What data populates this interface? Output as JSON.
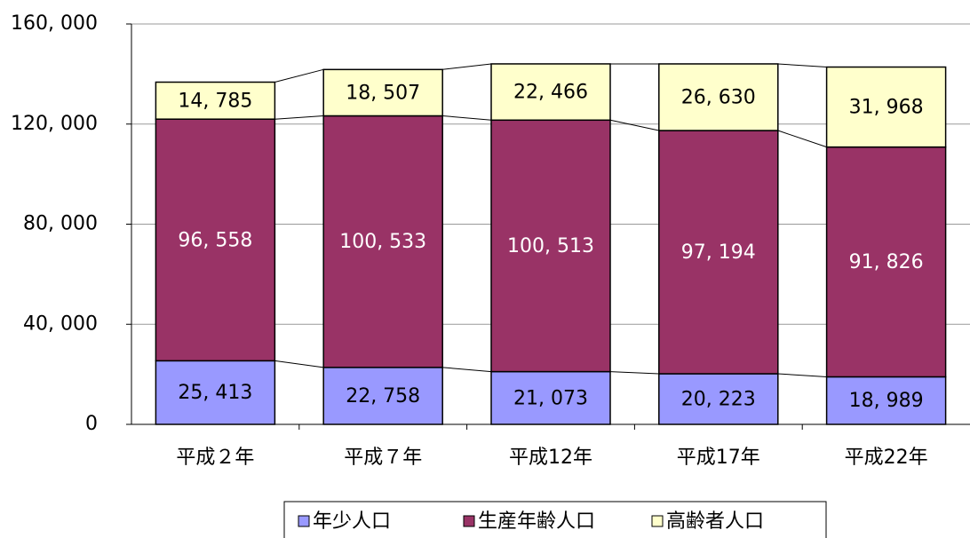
{
  "chart_data": {
    "type": "stacked-bar",
    "categories": [
      "平成２年",
      "平成７年",
      "平成12年",
      "平成17年",
      "平成22年"
    ],
    "series": [
      {
        "name": "年少人口",
        "color": "#9999ff",
        "values": [
          25413,
          22758,
          21073,
          20223,
          18989
        ],
        "value_labels": [
          "25, 413",
          "22, 758",
          "21, 073",
          "20, 223",
          "18, 989"
        ]
      },
      {
        "name": "生産年齢人口",
        "color": "#993366",
        "values": [
          96558,
          100533,
          100513,
          97194,
          91826
        ],
        "value_labels": [
          "96, 558",
          "100, 533",
          "100, 513",
          "97, 194",
          "91, 826"
        ]
      },
      {
        "name": "高齢者人口",
        "color": "#ffffcc",
        "values": [
          14785,
          18507,
          22466,
          26630,
          31968
        ],
        "value_labels": [
          "14, 785",
          "18, 507",
          "22, 466",
          "26, 630",
          "31, 968"
        ]
      }
    ],
    "ylim": [
      0,
      160000
    ],
    "yticks": [
      0,
      {
        "value": 40000,
        "label": "40, 000"
      },
      {
        "value": 80000,
        "label": "80, 000"
      },
      {
        "value": 120000,
        "label": "120, 000"
      },
      {
        "value": 160000,
        "label": "160, 000"
      }
    ],
    "grid": true,
    "legend": "bottom"
  }
}
